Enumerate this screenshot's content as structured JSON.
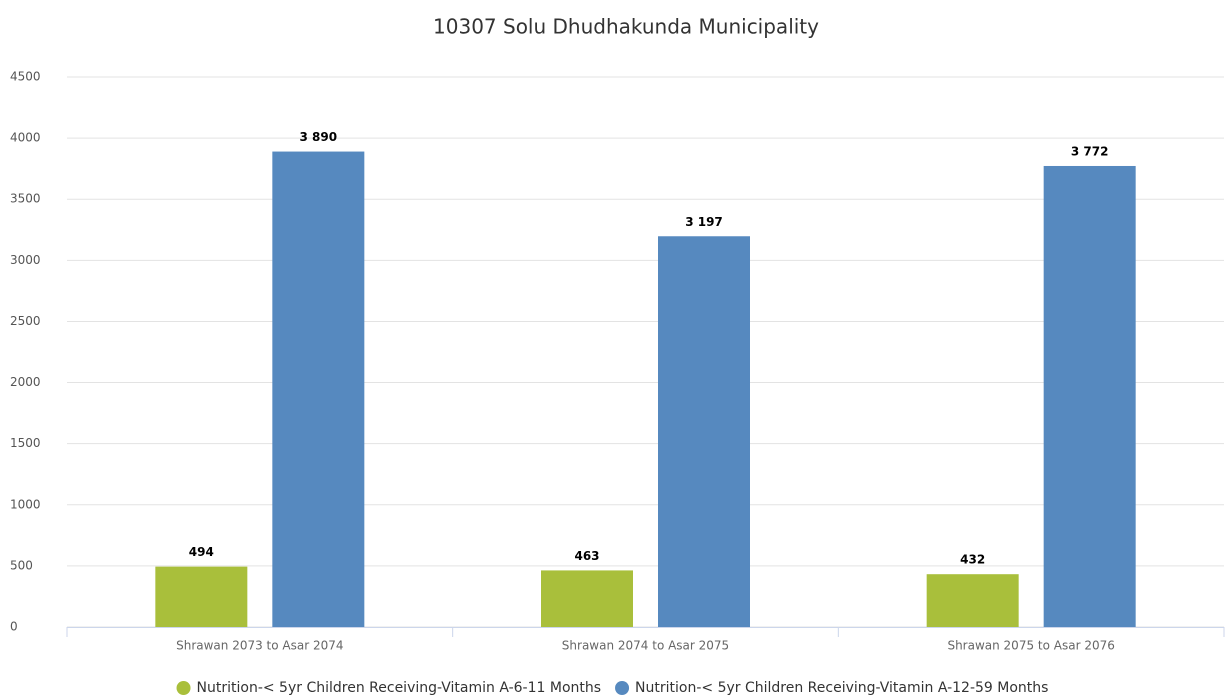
{
  "chart_data": {
    "type": "bar",
    "title": "10307 Solu Dhudhakunda Municipality",
    "categories": [
      "Shrawan 2073 to Asar 2074",
      "Shrawan 2074 to Asar 2075",
      "Shrawan 2075 to Asar 2076"
    ],
    "series": [
      {
        "name": "Nutrition-< 5yr Children Receiving-Vitamin A-6-11 Months",
        "color": "#a9bf3b",
        "values": [
          494,
          463,
          432
        ]
      },
      {
        "name": "Nutrition-< 5yr Children Receiving-Vitamin A-12-59 Months",
        "color": "#5689bf",
        "values": [
          3890,
          3197,
          3772
        ],
        "value_labels": [
          "3 890",
          "3 197",
          "3 772"
        ]
      }
    ],
    "ylim": [
      0,
      4500
    ],
    "yticks": [
      0,
      500,
      1000,
      1500,
      2000,
      2500,
      3000,
      3500,
      4000,
      4500
    ],
    "grid": true,
    "legend": "bottom"
  }
}
